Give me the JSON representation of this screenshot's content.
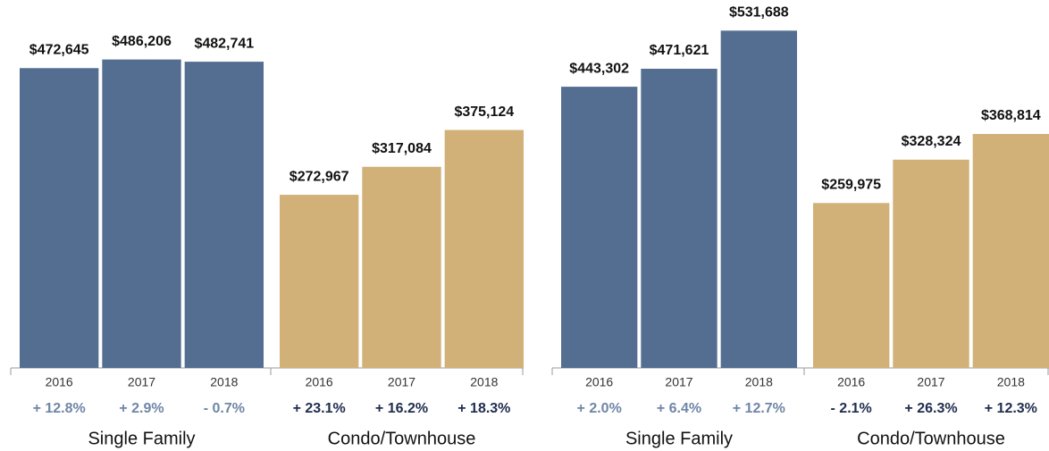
{
  "chart_data": [
    {
      "type": "grouped-bar",
      "ylim": [
        0,
        580000
      ],
      "groups": [
        {
          "name": "Single Family",
          "color": "#546e92",
          "label_color": "#6f86a6",
          "categories": [
            "2016",
            "2017",
            "2018"
          ],
          "values": [
            472645,
            486206,
            482741
          ],
          "value_labels": [
            "$472,645",
            "$486,206",
            "$482,741"
          ],
          "change_labels": [
            "+ 12.8%",
            "+ 2.9%",
            "- 0.7%"
          ]
        },
        {
          "name": "Condo/Townhouse",
          "color": "#d1b178",
          "label_color": "#1f2d4d",
          "categories": [
            "2016",
            "2017",
            "2018"
          ],
          "values": [
            272967,
            317084,
            375124
          ],
          "value_labels": [
            "$272,967",
            "$317,084",
            "$375,124"
          ],
          "change_labels": [
            "+ 23.1%",
            "+ 16.2%",
            "+ 18.3%"
          ]
        }
      ]
    },
    {
      "type": "grouped-bar",
      "ylim": [
        0,
        580000
      ],
      "groups": [
        {
          "name": "Single Family",
          "color": "#546e92",
          "label_color": "#6f86a6",
          "categories": [
            "2016",
            "2017",
            "2018"
          ],
          "values": [
            443302,
            471621,
            531688
          ],
          "value_labels": [
            "$443,302",
            "$471,621",
            "$531,688"
          ],
          "change_labels": [
            "+ 2.0%",
            "+ 6.4%",
            "+ 12.7%"
          ]
        },
        {
          "name": "Condo/Townhouse",
          "color": "#d1b178",
          "label_color": "#1f2d4d",
          "categories": [
            "2016",
            "2017",
            "2018"
          ],
          "values": [
            259975,
            328324,
            368814
          ],
          "value_labels": [
            "$259,975",
            "$328,324",
            "$368,814"
          ],
          "change_labels": [
            "- 2.1%",
            "+ 26.3%",
            "+ 12.3%"
          ]
        }
      ]
    }
  ]
}
